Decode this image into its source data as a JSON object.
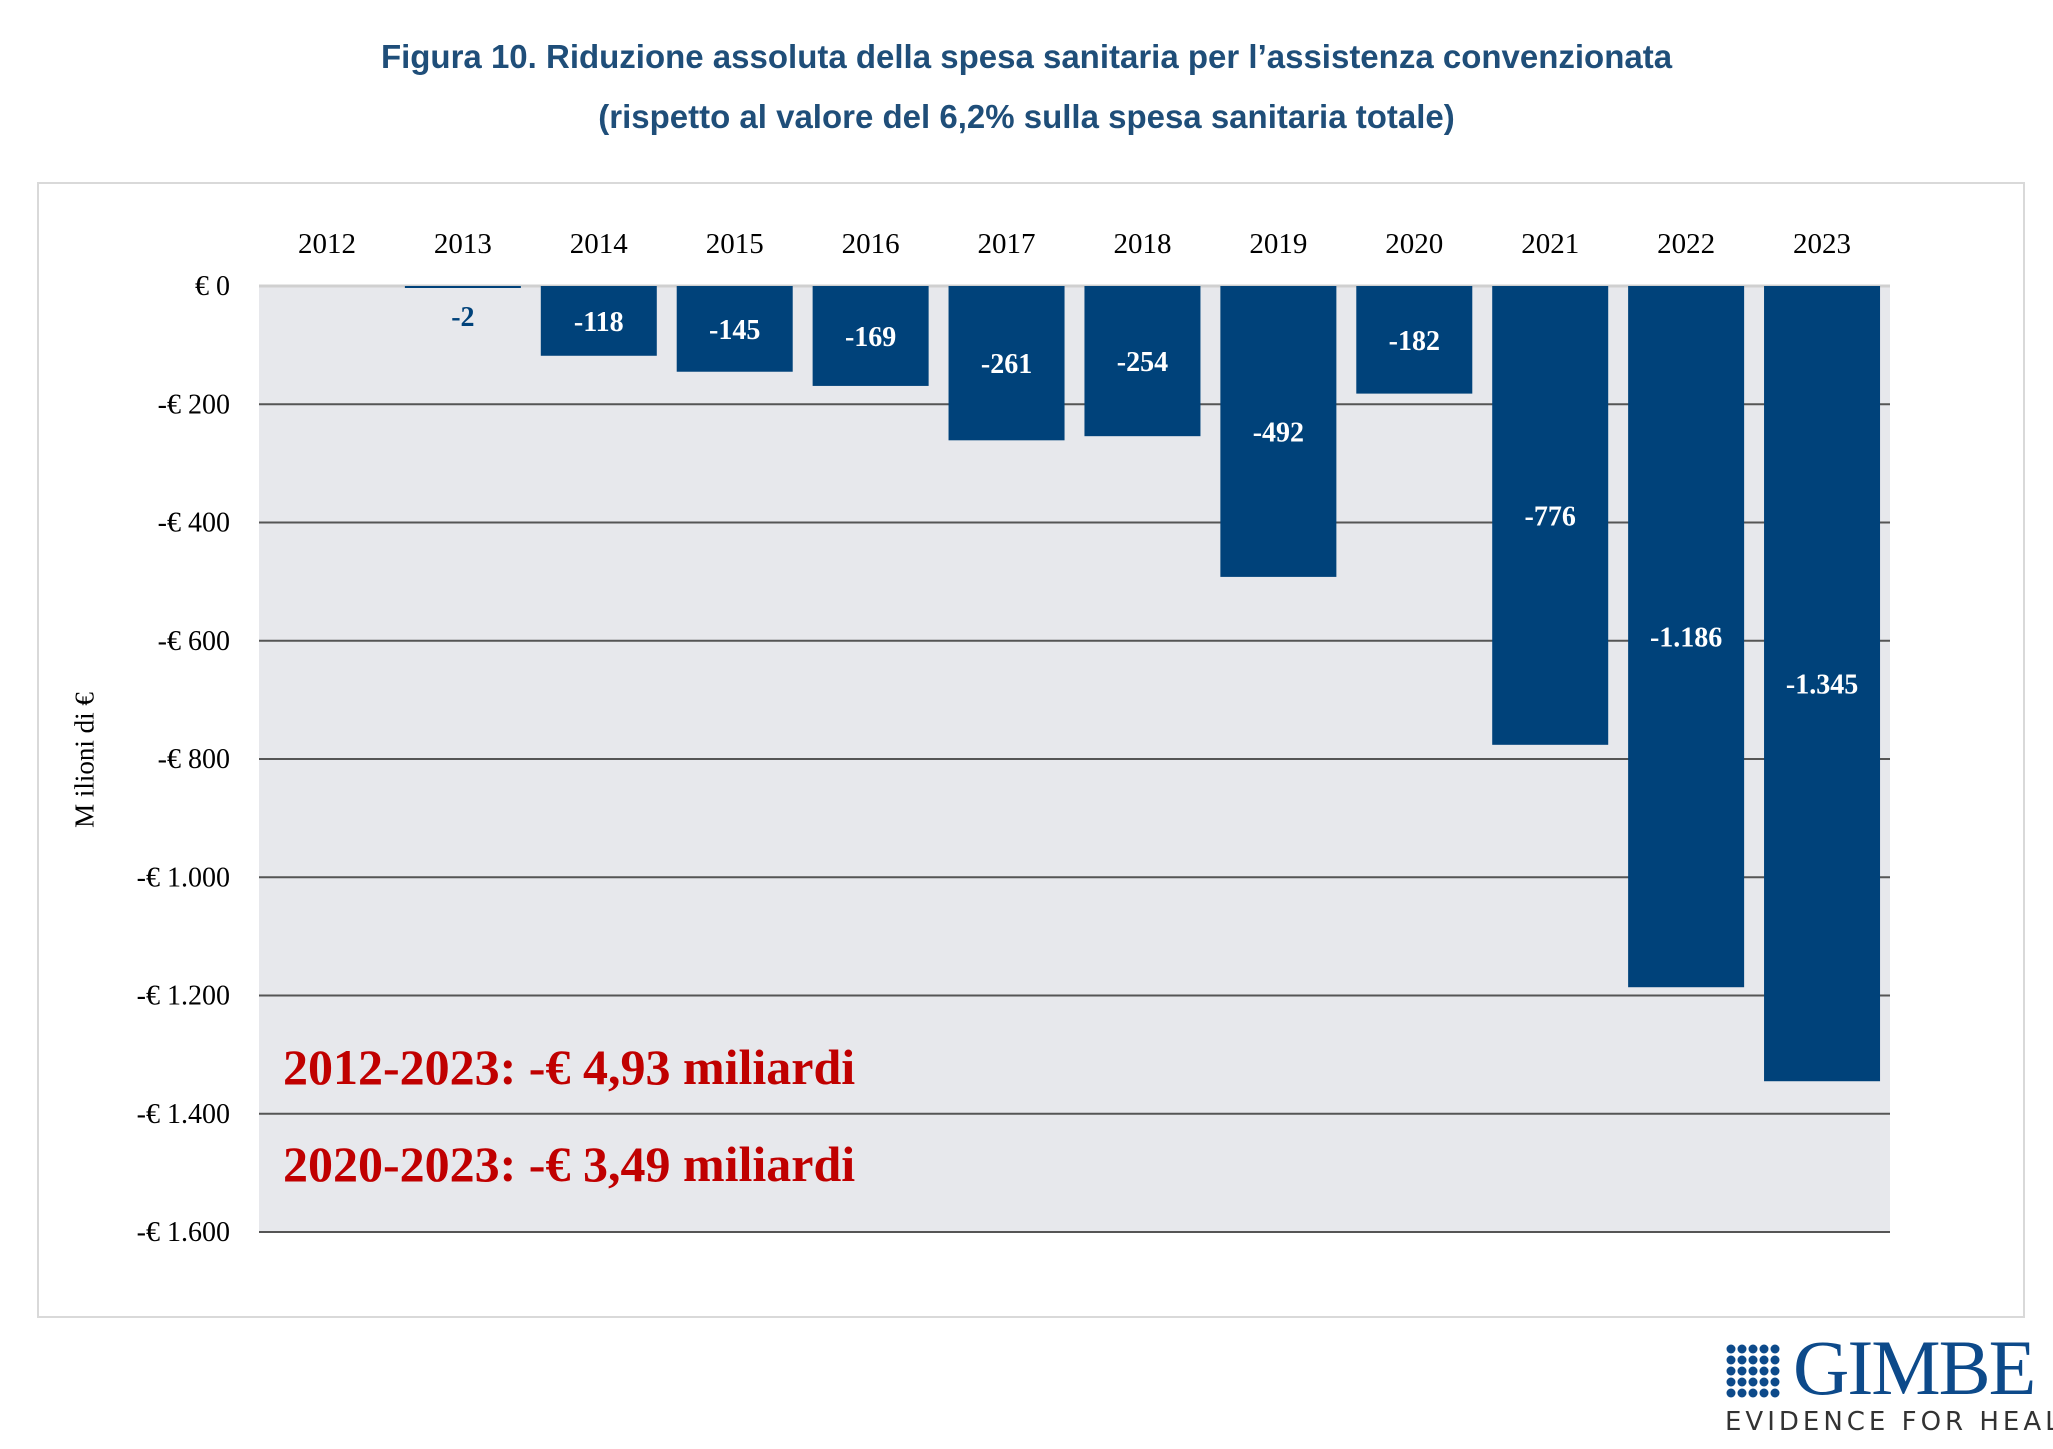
{
  "title_line1": "Figura 10. Riduzione assoluta della spesa sanitaria per l’assistenza convenzionata",
  "title_line2": "(rispetto al valore del 6,2% sulla spesa sanitaria totale)",
  "chart_data": {
    "type": "bar",
    "categories": [
      "2012",
      "2013",
      "2014",
      "2015",
      "2016",
      "2017",
      "2018",
      "2019",
      "2020",
      "2021",
      "2022",
      "2023"
    ],
    "values": [
      0,
      -2,
      -118,
      -145,
      -169,
      -261,
      -254,
      -492,
      -182,
      -776,
      -1186,
      -1345
    ],
    "data_labels": [
      "",
      "-2",
      "-118",
      "-145",
      "-169",
      "-261",
      "-254",
      "-492",
      "-182",
      "-776",
      "-1.186",
      "-1.345"
    ],
    "ylabel": "M ilioni di €",
    "ylim": [
      -1600,
      0
    ],
    "yticks": [
      0,
      -200,
      -400,
      -600,
      -800,
      -1000,
      -1200,
      -1400,
      -1600
    ],
    "ytick_labels": [
      "€ 0",
      "-€ 200",
      "-€ 400",
      "-€ 600",
      "-€ 800",
      "-€ 1.000",
      "-€ 1.200",
      "-€ 1.400",
      "-€ 1.600"
    ],
    "x_axis_position": "top",
    "grid": true,
    "bar_color": "#00427a",
    "plot_background": "#e7e8ec",
    "annotations": [
      "2012-2023: -€ 4,93 miliardi",
      "2020-2023: -€ 3,49 miliardi"
    ]
  },
  "logo": {
    "name": "GIMBE",
    "tagline": "EVIDENCE FOR HEALTH"
  }
}
